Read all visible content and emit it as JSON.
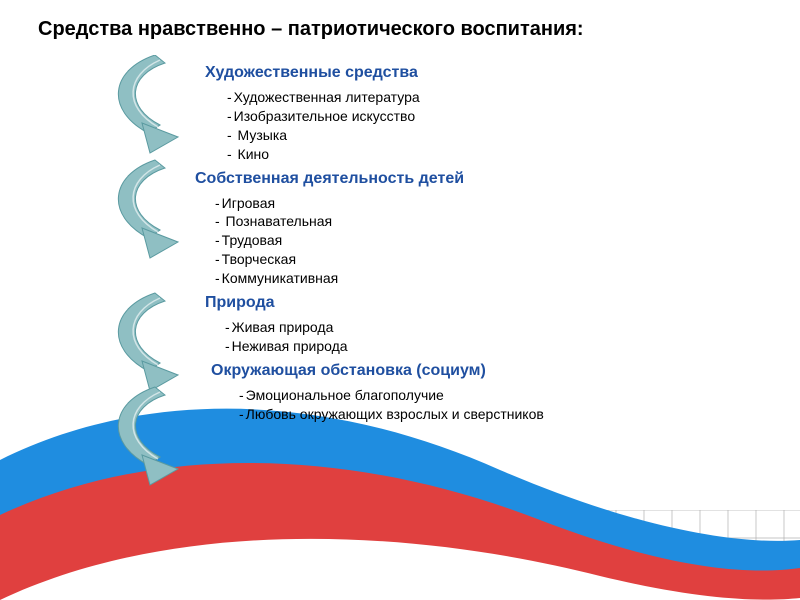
{
  "title": "Средства нравственно – патриотического воспитания:",
  "title_color": "#000000",
  "title_fontsize": 20,
  "section_title_color": "#1f4fa0",
  "section_title_fontsize": 16,
  "item_fontsize": 14,
  "item_color": "#000000",
  "sections": [
    {
      "title": "Художественные средства",
      "title_indent": 0,
      "items_indent": 22,
      "items": [
        "Художественная литература",
        "Изобразительное искусство",
        " Музыка",
        " Кино"
      ]
    },
    {
      "title": "Собственная деятельность детей",
      "title_indent": -10,
      "items_indent": 10,
      "items": [
        "Игровая",
        " Познавательная",
        "Трудовая",
        "Творческая",
        "Коммуникативная"
      ]
    },
    {
      "title": "Природа",
      "title_indent": 0,
      "items_indent": 20,
      "items": [
        "Живая природа",
        "Неживая природа"
      ]
    },
    {
      "title": "Окружающая обстановка (социум)",
      "title_indent": 6,
      "items_indent": 34,
      "items": [
        "Эмоциональное благополучие",
        "Любовь окружающих взрослых и сверстников"
      ]
    }
  ],
  "arrows": {
    "fill": "#8fbfc3",
    "stroke": "#5a9aa0",
    "positions": [
      0,
      105,
      238,
      332
    ]
  },
  "waves": {
    "blue": "#1f8de0",
    "red": "#e0403f",
    "white": "#ffffff"
  },
  "grid": {
    "line_color": "#b0b0b0",
    "red_line_color": "#d04040",
    "bg": "#ffffff"
  }
}
